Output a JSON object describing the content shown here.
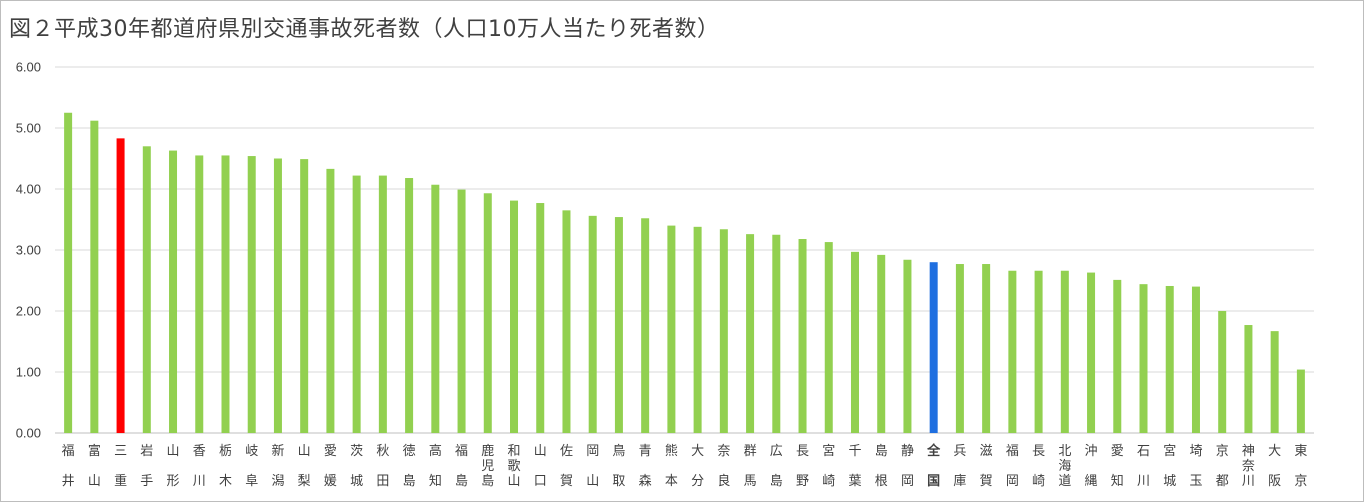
{
  "title": "図２平成30年都道府県別交通事故死者数（人口10万人当たり死者数）",
  "colors": {
    "default": "#92d050",
    "highlight_mie": "#ff0000",
    "national": "#1f6fe0",
    "national_label": "#ff0000",
    "grid": "#d9d9d9"
  },
  "chart_data": {
    "type": "bar",
    "title": "図２平成30年都道府県別交通事故死者数（人口10万人当たり死者数）",
    "xlabel": "",
    "ylabel": "",
    "ylim": [
      0,
      6
    ],
    "yticks": [
      "0.00",
      "1.00",
      "2.00",
      "3.00",
      "4.00",
      "5.00",
      "6.00"
    ],
    "grid": true,
    "categories": [
      "福井",
      "富山",
      "三重",
      "岩手",
      "山形",
      "香川",
      "栃木",
      "岐阜",
      "新潟",
      "山梨",
      "愛媛",
      "茨城",
      "秋田",
      "徳島",
      "高知",
      "福島",
      "鹿児島",
      "和歌山",
      "山口",
      "佐賀",
      "岡山",
      "鳥取",
      "青森",
      "熊本",
      "大分",
      "奈良",
      "群馬",
      "広島",
      "長野",
      "宮崎",
      "千葉",
      "島根",
      "静岡",
      "全国",
      "兵庫",
      "滋賀",
      "福岡",
      "長崎",
      "北海道",
      "沖縄",
      "愛知",
      "石川",
      "宮城",
      "埼玉",
      "京都",
      "神奈川",
      "大阪",
      "東京"
    ],
    "values": [
      5.25,
      5.12,
      4.83,
      4.7,
      4.63,
      4.55,
      4.55,
      4.54,
      4.5,
      4.49,
      4.33,
      4.22,
      4.22,
      4.18,
      4.07,
      3.99,
      3.93,
      3.81,
      3.77,
      3.65,
      3.56,
      3.54,
      3.52,
      3.4,
      3.38,
      3.34,
      3.26,
      3.25,
      3.18,
      3.13,
      2.97,
      2.92,
      2.84,
      2.8,
      2.77,
      2.77,
      2.66,
      2.66,
      2.66,
      2.63,
      2.51,
      2.44,
      2.41,
      2.4,
      2.0,
      1.77,
      1.67,
      1.04
    ],
    "highlight": {
      "三重": "highlight_mie",
      "全国": "national"
    }
  }
}
